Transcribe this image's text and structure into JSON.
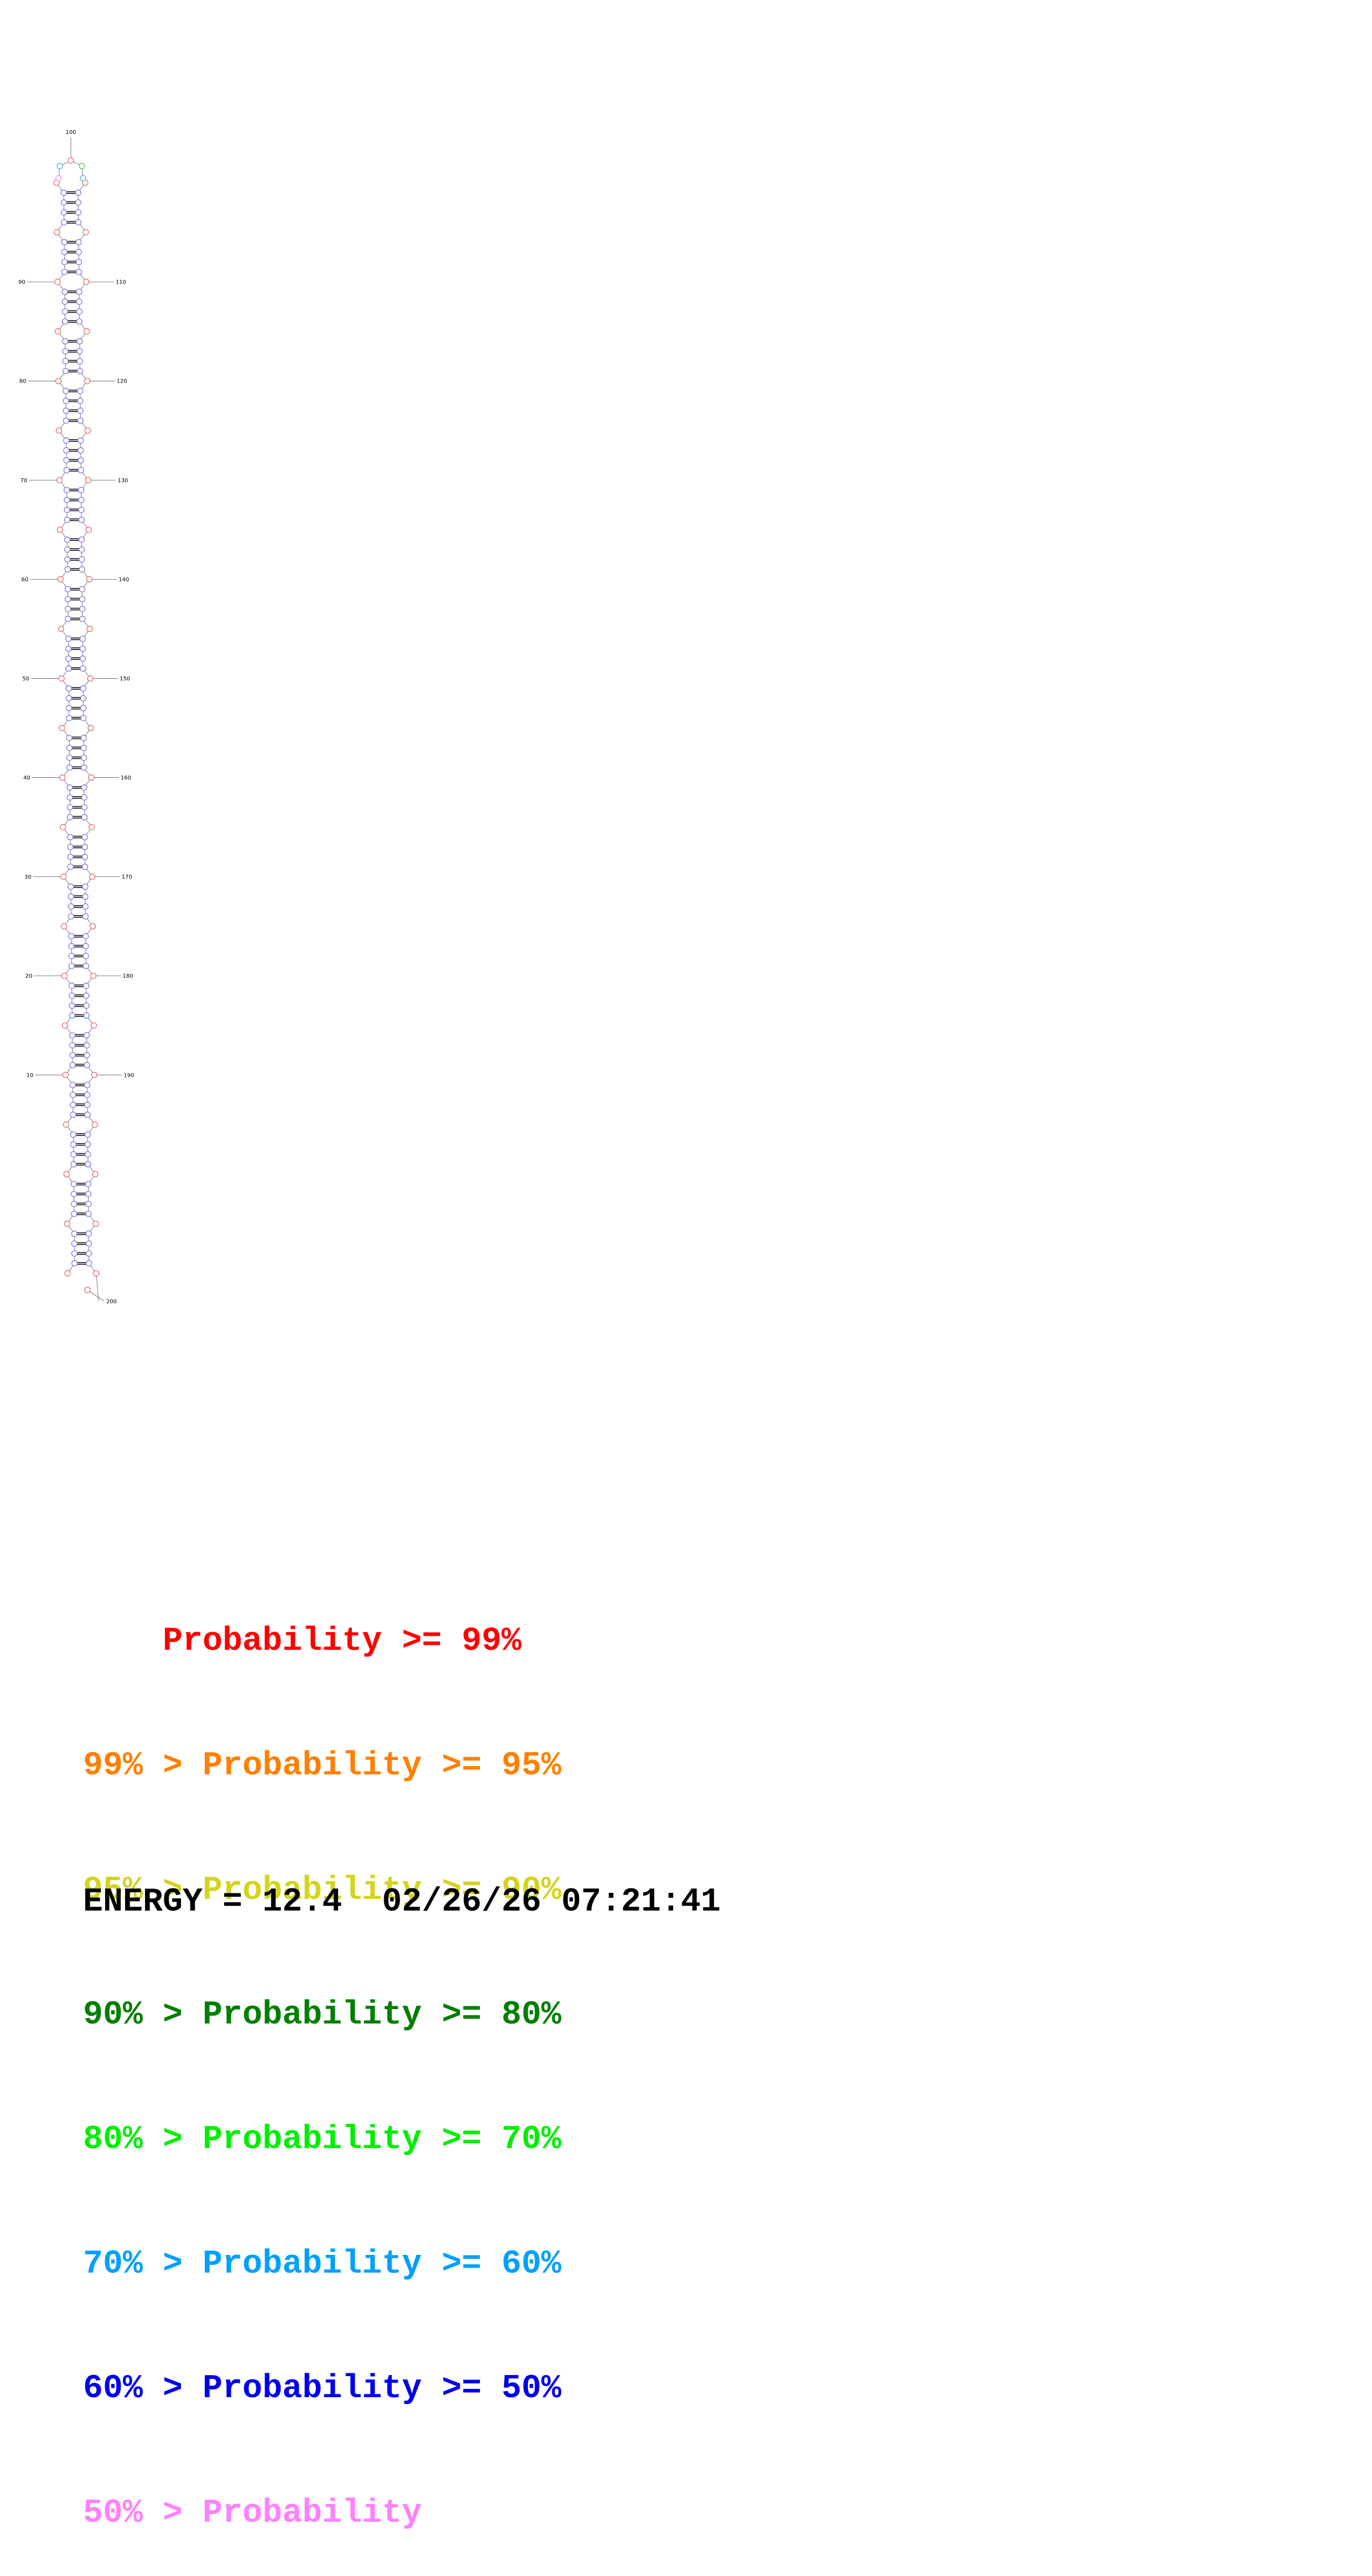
{
  "diagram": {
    "kind": "RNA secondary structure",
    "sequence_length": 200,
    "position_labels": [
      "100",
      "90",
      "110",
      "80",
      "120",
      "70",
      "130",
      "60",
      "140",
      "50",
      "150",
      "40",
      "160",
      "30",
      "170",
      "20",
      "180",
      "10",
      "190",
      "200"
    ],
    "colors": {
      "paired_base": "#6f6fe6",
      "unpaired_base": "#e06060",
      "terminal_loop_pink": "#f080f0",
      "terminal_loop_cyan": "#3aa9e8",
      "terminal_loop_green": "#40c040",
      "pair_bond": "#000000"
    }
  },
  "legend": [
    {
      "prefix": "    ",
      "text": "Probability >= 99%",
      "color": "#ff0000"
    },
    {
      "prefix": "99% > ",
      "text": "Probability >= 95%",
      "color": "#ff7f00"
    },
    {
      "prefix": "95% > ",
      "text": "Probability >= 90%",
      "color": "#d4d41e"
    },
    {
      "prefix": "90% > ",
      "text": "Probability >= 80%",
      "color": "#007f00"
    },
    {
      "prefix": "80% > ",
      "text": "Probability >= 70%",
      "color": "#00ee00"
    },
    {
      "prefix": "70% > ",
      "text": "Probability >= 60%",
      "color": "#00a0ff"
    },
    {
      "prefix": "60% > ",
      "text": "Probability >= 50%",
      "color": "#0000ee"
    },
    {
      "prefix": "50% > ",
      "text": "Probability",
      "color": "#ff80ff"
    }
  ],
  "energy_line": "ENERGY = 12.4  02/26/26 07:21:41"
}
